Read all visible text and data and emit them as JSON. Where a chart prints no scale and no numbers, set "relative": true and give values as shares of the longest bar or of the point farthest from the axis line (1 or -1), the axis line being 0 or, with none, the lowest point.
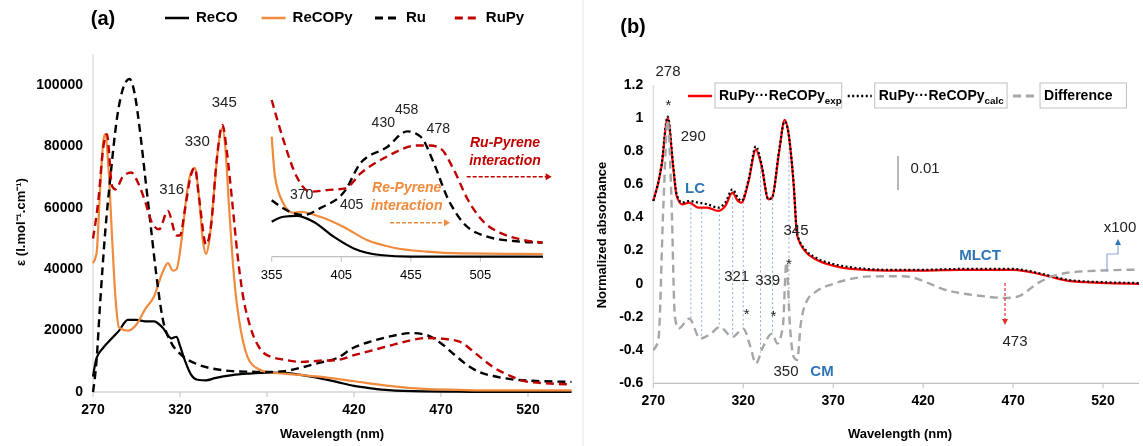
{
  "chart_data": [
    {
      "type": "line",
      "title": "(a)",
      "xlabel": "Wavelength (nm)",
      "ylabel": "ε (l.mol⁻¹.cm⁻¹)",
      "xlim": [
        270,
        545
      ],
      "xticks": [
        270,
        320,
        370,
        420,
        470,
        520
      ],
      "ylim": [
        0,
        110000
      ],
      "yticks": [
        0,
        20000,
        40000,
        60000,
        80000,
        100000
      ],
      "legend": "top",
      "grid": false,
      "series": [
        {
          "name": "ReCO",
          "color": "#000000",
          "line_style": "solid",
          "x": [
            270,
            272,
            276,
            280,
            285,
            290,
            295,
            300,
            305,
            310,
            315,
            318,
            320,
            323,
            326,
            330,
            335,
            340,
            350,
            360,
            370,
            380,
            390,
            400,
            410,
            420,
            430,
            440,
            460,
            480,
            500,
            545
          ],
          "values": [
            5000,
            11000,
            14500,
            17000,
            20000,
            23500,
            23500,
            23000,
            23000,
            21000,
            17500,
            18000,
            15000,
            10000,
            6000,
            4000,
            3800,
            4500,
            5500,
            6000,
            6300,
            6200,
            5500,
            4500,
            3300,
            2000,
            1200,
            600,
            200,
            100,
            0,
            0
          ]
        },
        {
          "name": "ReCOPy",
          "color": "#f08a3c",
          "line_style": "solid",
          "x": [
            270,
            272,
            274,
            276,
            277,
            279,
            281,
            283,
            285,
            290,
            295,
            300,
            305,
            310,
            313,
            316,
            318,
            321,
            324,
            326,
            328.5,
            331,
            333,
            335,
            337,
            340,
            342,
            344.4,
            346,
            348,
            350,
            352,
            355,
            360,
            365,
            370,
            380,
            400,
            420,
            440,
            460,
            480,
            500,
            545
          ],
          "values": [
            42000,
            45000,
            65000,
            82000,
            84000,
            72000,
            50000,
            30000,
            21000,
            20000,
            22000,
            27000,
            31000,
            39000,
            42000,
            39500,
            40000,
            50000,
            65000,
            71000,
            73000,
            63000,
            50000,
            45000,
            50000,
            68000,
            80000,
            86000,
            80000,
            62000,
            45000,
            32000,
            20000,
            10000,
            7500,
            6500,
            6000,
            5000,
            3500,
            2000,
            1000,
            700,
            500,
            500
          ]
        },
        {
          "name": "Ru",
          "color": "#000000",
          "line_style": "dashed",
          "x": [
            270,
            272,
            274,
            277,
            280,
            284,
            288,
            291,
            294,
            297,
            300,
            303,
            306,
            310,
            315,
            320,
            330,
            340,
            350,
            360,
            370,
            380,
            390,
            400,
            410,
            420,
            430,
            440,
            453.5,
            462,
            469,
            478,
            485,
            492,
            500,
            510,
            525,
            545
          ],
          "values": [
            0,
            10000,
            28000,
            52000,
            70000,
            90000,
            100000,
            102000,
            97000,
            85000,
            70000,
            55000,
            40000,
            24000,
            16000,
            12500,
            9000,
            7500,
            6800,
            6600,
            6500,
            6800,
            8000,
            9500,
            11000,
            14500,
            16500,
            18000,
            19200,
            18500,
            16300,
            12000,
            8800,
            6500,
            5200,
            4200,
            3600,
            3300
          ]
        },
        {
          "name": "RuPy",
          "color": "#c00000",
          "line_style": "dashed",
          "x": [
            270,
            273,
            276,
            278,
            281,
            283,
            287,
            292,
            296,
            300,
            304,
            308,
            313,
            318,
            320,
            323,
            326,
            328.5,
            331,
            335,
            338,
            341,
            344.4,
            347,
            350,
            353,
            356,
            360,
            365,
            370,
            380,
            390,
            400,
            410,
            420,
            430,
            440,
            450,
            462,
            472,
            481,
            490,
            500,
            510,
            520,
            545
          ],
          "values": [
            50000,
            62000,
            80000,
            84000,
            67000,
            66000,
            70000,
            71500,
            68000,
            62000,
            55000,
            53000,
            59000,
            51000,
            51000,
            60000,
            70000,
            73000,
            63000,
            48000,
            55000,
            75000,
            87000,
            78000,
            62000,
            45000,
            32000,
            22000,
            15000,
            12000,
            10500,
            9800,
            10200,
            10400,
            12000,
            13500,
            15000,
            16500,
            17600,
            17300,
            16300,
            12500,
            8100,
            5200,
            3300,
            2500
          ]
        }
      ],
      "annotations": [
        "316",
        "330",
        "345"
      ]
    },
    {
      "type": "line",
      "relative": true,
      "xlim": [
        355,
        550
      ],
      "xticks": [
        355,
        405,
        455,
        505
      ],
      "series": [
        {
          "color": "#000000",
          "line_style": "solid",
          "x": [
            355,
            363.4,
            373,
            385,
            399.5,
            414,
            433,
            454.7,
            550
          ],
          "values": [
            0.223,
            0.255,
            0.26,
            0.223,
            0.128,
            0.053,
            0.011,
            0,
            0
          ]
        },
        {
          "color": "#f08a3c",
          "line_style": "solid",
          "x": [
            355,
            357.4,
            363.4,
            370.6,
            375.4,
            389.9,
            406.7,
            423.5,
            442.7,
            466.8,
            490.8,
            549.7
          ],
          "values": [
            0.766,
            0.51,
            0.34,
            0.28,
            0.287,
            0.255,
            0.19,
            0.106,
            0.057,
            0.032,
            0.021,
            0.017
          ]
        },
        {
          "color": "#000000",
          "line_style": "dashed",
          "x": [
            355,
            368,
            377.8,
            389.9,
            408,
            418.7,
            438,
            452.4,
            462,
            471.6,
            481,
            493,
            510,
            529,
            549.7
          ],
          "values": [
            0.36,
            0.287,
            0.266,
            0.31,
            0.425,
            0.596,
            0.7,
            0.8,
            0.766,
            0.596,
            0.383,
            0.213,
            0.128,
            0.1,
            0.09
          ]
        },
        {
          "color": "#c00000",
          "line_style": "dashed",
          "x": [
            355,
            363.4,
            373,
            382.6,
            394.7,
            408,
            418.7,
            438,
            459.6,
            469,
            476.4,
            486,
            495.6,
            507.6,
            519.7,
            534,
            549.7
          ],
          "values": [
            1,
            0.745,
            0.51,
            0.415,
            0.425,
            0.436,
            0.53,
            0.64,
            0.71,
            0.71,
            0.69,
            0.553,
            0.37,
            0.22,
            0.15,
            0.11,
            0.09
          ]
        }
      ],
      "annotations": [
        "370",
        "405",
        "430",
        "458",
        "478",
        "Re-Pyrene interaction",
        "Ru-Pyrene interaction"
      ]
    },
    {
      "type": "line",
      "title": "(b)",
      "xlabel": "Wavelength (nm)",
      "ylabel": "Normalized absorbance",
      "xlim": [
        270,
        540
      ],
      "xticks": [
        270,
        320,
        370,
        420,
        470,
        520
      ],
      "ylim": [
        -0.6,
        1.2
      ],
      "yticks": [
        -0.6,
        -0.4,
        -0.2,
        0,
        0.2,
        0.4,
        0.6,
        0.8,
        1,
        1.2
      ],
      "legend": "top",
      "grid": false,
      "series": [
        {
          "name": "RuPy···ReCOPy$_{exp}$",
          "color": "#ff0000",
          "line_style": "solid",
          "x": [
            270,
            274.6,
            278,
            281,
            283,
            286,
            290,
            295,
            300,
            306,
            310,
            314,
            317,
            319,
            323,
            327,
            330,
            334,
            336,
            340,
            343,
            345,
            348,
            350,
            355,
            360,
            370,
            380,
            400,
            420,
            440,
            470,
            480,
            490,
            500,
            510,
            540
          ],
          "values": [
            0.5,
            0.71,
            1.0,
            0.71,
            0.53,
            0.48,
            0.49,
            0.46,
            0.46,
            0.44,
            0.47,
            0.55,
            0.5,
            0.49,
            0.62,
            0.81,
            0.72,
            0.51,
            0.52,
            0.8,
            0.99,
            0.92,
            0.6,
            0.29,
            0.19,
            0.15,
            0.11,
            0.09,
            0.08,
            0.08,
            0.085,
            0.085,
            0.07,
            0.045,
            0.02,
            0.01,
            0.0
          ]
        },
        {
          "name": "RuPy···ReCOPy$_{calc}$",
          "color": "#000000",
          "line_style": "dotted",
          "x": [
            270,
            274.6,
            278,
            281,
            283,
            286,
            290,
            295,
            300,
            306,
            310,
            314,
            317,
            319,
            323,
            327,
            330,
            334,
            336,
            340,
            343,
            345,
            348,
            350,
            355,
            360,
            370,
            380,
            400,
            420,
            440,
            470,
            480,
            490,
            500,
            510,
            540
          ],
          "values": [
            0.5,
            0.72,
            1.01,
            0.72,
            0.54,
            0.49,
            0.5,
            0.49,
            0.48,
            0.46,
            0.49,
            0.57,
            0.52,
            0.5,
            0.63,
            0.83,
            0.73,
            0.51,
            0.52,
            0.81,
            0.98,
            0.92,
            0.61,
            0.3,
            0.2,
            0.16,
            0.12,
            0.1,
            0.085,
            0.085,
            0.09,
            0.09,
            0.075,
            0.05,
            0.025,
            0.015,
            0.005
          ]
        },
        {
          "name": "Difference",
          "color": "#a6a6a6",
          "line_style": "dashed",
          "x": [
            270,
            272.8,
            275.6,
            278,
            280.2,
            282,
            284,
            290,
            296,
            302,
            307,
            314,
            320,
            324,
            327,
            331,
            336,
            339,
            342,
            344,
            346,
            348,
            350,
            352,
            356,
            360,
            370,
            380,
            390,
            409,
            435,
            450,
            467,
            473,
            484,
            495,
            510,
            540
          ],
          "values": [
            -0.4,
            -0.34,
            0.47,
            0.99,
            0.47,
            -0.2,
            -0.27,
            -0.21,
            -0.33,
            -0.3,
            -0.26,
            -0.32,
            -0.27,
            -0.38,
            -0.48,
            -0.38,
            -0.3,
            -0.36,
            -0.26,
            0.13,
            -0.26,
            -0.44,
            -0.46,
            -0.24,
            -0.09,
            -0.05,
            0.0,
            0.03,
            0.045,
            0.046,
            -0.044,
            -0.07,
            -0.085,
            -0.075,
            0.006,
            0.056,
            0.076,
            0.086
          ]
        }
      ],
      "ref_lines": [
        {
          "axis": "x",
          "value": 290.9,
          "color": "#8faadc",
          "line_style": "dotted"
        },
        {
          "axis": "x",
          "value": 296.9,
          "color": "#8faadc",
          "line_style": "dotted"
        },
        {
          "axis": "x",
          "value": 306.7,
          "color": "#8faadc",
          "line_style": "dotted"
        },
        {
          "axis": "x",
          "value": 314.1,
          "color": "#8faadc",
          "line_style": "dotted"
        },
        {
          "axis": "x",
          "value": 320,
          "color": "#8faadc",
          "line_style": "dotted"
        },
        {
          "axis": "x",
          "value": 329.6,
          "color": "#8faadc",
          "line_style": "dotted"
        },
        {
          "axis": "x",
          "value": 336.3,
          "color": "#8faadc",
          "line_style": "dotted"
        },
        {
          "axis": "x",
          "value": 345.4,
          "color": "#8faadc",
          "line_style": "dotted"
        }
      ],
      "annotations": [
        "278",
        "*",
        "290",
        "LC",
        "345",
        "321",
        "339",
        "350",
        "CM",
        "*",
        "*",
        "*",
        "MLCT",
        "473",
        "x100",
        "0.01"
      ]
    }
  ]
}
